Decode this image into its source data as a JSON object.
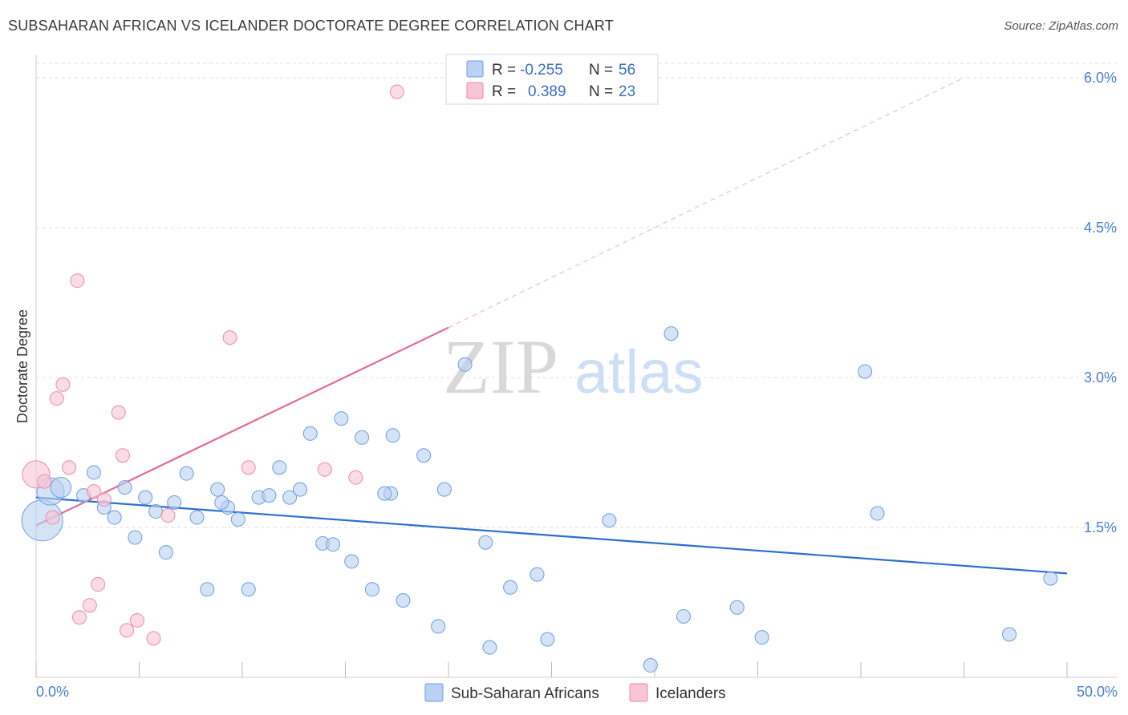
{
  "header": {
    "title": "SUBSAHARAN AFRICAN VS ICELANDER DOCTORATE DEGREE CORRELATION CHART",
    "source": "Source: ZipAtlas.com"
  },
  "colors": {
    "blue": "#6d9ee0",
    "blue_fill": "#b9d1f2",
    "blue_line": "#2a6fce",
    "pink": "#ee8aaa",
    "pink_fill": "#f7c5d5",
    "pink_line": "#e36b97",
    "axis_text": "#4a7fcc"
  },
  "watermark": {
    "zip": "ZIP",
    "atlas": "atlas"
  },
  "legend": {
    "r_label": "R =",
    "n_label": "N =",
    "rows": [
      {
        "series": "Sub-Saharan Africans",
        "r": "-0.255",
        "n": "56"
      },
      {
        "series": "Icelanders",
        "r": "0.389",
        "n": "23"
      }
    ]
  },
  "bottom_legend": [
    "Sub-Saharan Africans",
    "Icelanders"
  ],
  "chart_data": {
    "type": "scatter",
    "title": "SUBSAHARAN AFRICAN VS ICELANDER DOCTORATE DEGREE CORRELATION CHART",
    "xlabel": "",
    "ylabel": "Doctorate Degree",
    "xlim": [
      0,
      50
    ],
    "ylim": [
      0,
      6.0
    ],
    "x_tick_labels": [
      "0.0%",
      "50.0%"
    ],
    "y_ticks": [
      1.5,
      3.0,
      4.5,
      6.0
    ],
    "y_tick_labels": [
      "1.5%",
      "3.0%",
      "4.5%",
      "6.0%"
    ],
    "grid": true,
    "series": [
      {
        "name": "Sub-Saharan Africans",
        "color": "#6d9ee0",
        "points": [
          [
            0.3,
            1.57,
            3
          ],
          [
            0.7,
            1.86,
            2
          ],
          [
            1.2,
            1.9,
            1.5
          ],
          [
            2.3,
            1.82,
            1
          ],
          [
            2.8,
            2.05,
            1
          ],
          [
            3.3,
            1.7,
            1
          ],
          [
            3.8,
            1.6,
            1
          ],
          [
            4.3,
            1.9,
            1
          ],
          [
            4.8,
            1.4,
            1
          ],
          [
            5.3,
            1.8,
            1
          ],
          [
            5.8,
            1.66,
            1
          ],
          [
            6.3,
            1.25,
            1
          ],
          [
            6.7,
            1.75,
            1
          ],
          [
            7.3,
            2.04,
            1
          ],
          [
            7.8,
            1.6,
            1
          ],
          [
            8.3,
            0.88,
            1
          ],
          [
            8.8,
            1.88,
            1
          ],
          [
            9.3,
            1.7,
            1
          ],
          [
            9.8,
            1.58,
            1
          ],
          [
            10.3,
            0.88,
            1
          ],
          [
            10.8,
            1.8,
            1
          ],
          [
            11.3,
            1.82,
            1
          ],
          [
            11.8,
            2.1,
            1
          ],
          [
            12.3,
            1.8,
            1
          ],
          [
            12.8,
            1.88,
            1
          ],
          [
            13.3,
            2.44,
            1
          ],
          [
            13.9,
            1.34,
            1
          ],
          [
            14.4,
            1.33,
            1
          ],
          [
            14.8,
            2.59,
            1
          ],
          [
            15.3,
            1.16,
            1
          ],
          [
            15.8,
            2.4,
            1
          ],
          [
            16.3,
            0.88,
            1
          ],
          [
            17.3,
            2.42,
            1
          ],
          [
            17.8,
            0.77,
            1
          ],
          [
            18.8,
            2.22,
            1
          ],
          [
            19.5,
            0.51,
            1
          ],
          [
            19.8,
            1.88,
            1
          ],
          [
            20.8,
            3.13,
            1
          ],
          [
            21.8,
            1.35,
            1
          ],
          [
            22.0,
            0.3,
            1
          ],
          [
            23.0,
            0.9,
            1
          ],
          [
            24.3,
            1.03,
            1
          ],
          [
            24.8,
            0.38,
            1
          ],
          [
            27.8,
            1.57,
            1
          ],
          [
            29.8,
            0.12,
            1
          ],
          [
            30.8,
            3.44,
            1
          ],
          [
            31.4,
            0.61,
            1
          ],
          [
            34.0,
            0.7,
            1
          ],
          [
            35.2,
            0.4,
            1
          ],
          [
            40.2,
            3.06,
            1
          ],
          [
            40.8,
            1.64,
            1
          ],
          [
            47.2,
            0.43,
            1
          ],
          [
            49.2,
            0.99,
            1
          ],
          [
            17.2,
            1.84,
            1
          ],
          [
            16.9,
            1.84,
            1
          ],
          [
            9.0,
            1.75,
            1
          ]
        ]
      },
      {
        "name": "Icelanders",
        "color": "#ee8aaa",
        "points": [
          [
            0.0,
            2.03,
            2
          ],
          [
            0.4,
            1.96,
            1
          ],
          [
            0.8,
            1.6,
            1
          ],
          [
            1.0,
            2.79,
            1
          ],
          [
            1.3,
            2.93,
            1
          ],
          [
            1.6,
            2.1,
            1
          ],
          [
            2.0,
            3.97,
            1
          ],
          [
            2.1,
            0.6,
            1
          ],
          [
            2.6,
            0.72,
            1
          ],
          [
            2.8,
            1.86,
            1
          ],
          [
            3.0,
            0.93,
            1
          ],
          [
            3.3,
            1.78,
            1
          ],
          [
            4.0,
            2.65,
            1
          ],
          [
            4.2,
            2.22,
            1
          ],
          [
            4.4,
            0.47,
            1
          ],
          [
            4.9,
            0.57,
            1
          ],
          [
            5.7,
            0.39,
            1
          ],
          [
            6.4,
            1.62,
            1
          ],
          [
            9.4,
            3.4,
            1
          ],
          [
            10.3,
            2.1,
            1
          ],
          [
            14.0,
            2.08,
            1
          ],
          [
            15.5,
            2.0,
            1
          ],
          [
            17.5,
            5.86,
            1
          ]
        ]
      }
    ],
    "trend_lines": [
      {
        "series": "Sub-Saharan Africans",
        "x": [
          0,
          50
        ],
        "y": [
          1.8,
          1.04
        ],
        "style": "solid"
      },
      {
        "series": "Icelanders",
        "x": [
          0,
          20
        ],
        "y": [
          1.52,
          3.5
        ],
        "style": "solid"
      },
      {
        "series": "Icelanders",
        "x": [
          20,
          45
        ],
        "y": [
          3.5,
          6.0
        ],
        "style": "dashed"
      }
    ]
  }
}
